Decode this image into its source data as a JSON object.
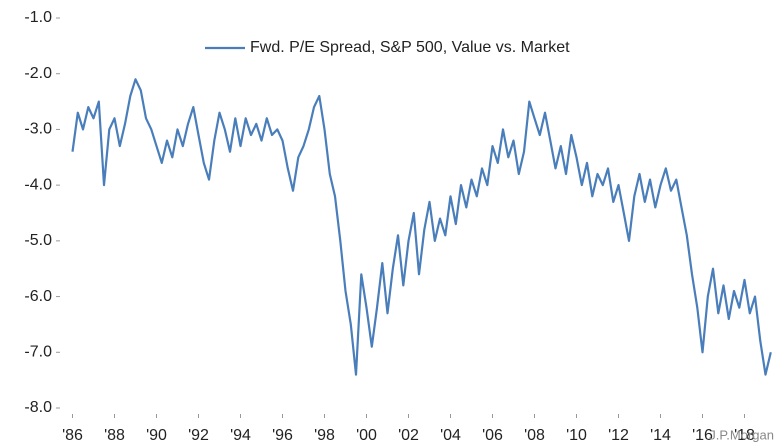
{
  "chart_data": {
    "type": "line",
    "legend": "top",
    "source": "J.P.Morgan",
    "xlim": [
      1985.5,
      2019.5
    ],
    "xticks": [
      {
        "value": 1986,
        "label": "'86"
      },
      {
        "value": 1988,
        "label": "'88"
      },
      {
        "value": 1990,
        "label": "'90"
      },
      {
        "value": 1992,
        "label": "'92"
      },
      {
        "value": 1994,
        "label": "'94"
      },
      {
        "value": 1996,
        "label": "'96"
      },
      {
        "value": 1998,
        "label": "'98"
      },
      {
        "value": 2000,
        "label": "'00"
      },
      {
        "value": 2002,
        "label": "'02"
      },
      {
        "value": 2004,
        "label": "'04"
      },
      {
        "value": 2006,
        "label": "'06"
      },
      {
        "value": 2008,
        "label": "'08"
      },
      {
        "value": 2010,
        "label": "'10"
      },
      {
        "value": 2012,
        "label": "'12"
      },
      {
        "value": 2014,
        "label": "'14"
      },
      {
        "value": 2016,
        "label": "'16"
      },
      {
        "value": 2018,
        "label": "'18"
      }
    ],
    "ylim": [
      -8,
      -1
    ],
    "yticks": [
      {
        "value": -1,
        "label": "-1.0"
      },
      {
        "value": -2,
        "label": "-2.0"
      },
      {
        "value": -3,
        "label": "-3.0"
      },
      {
        "value": -4,
        "label": "-4.0"
      },
      {
        "value": -5,
        "label": "-5.0"
      },
      {
        "value": -6,
        "label": "-6.0"
      },
      {
        "value": -7,
        "label": "-7.0"
      },
      {
        "value": -8,
        "label": "-8.0"
      }
    ],
    "x": [
      1986.0,
      1986.25,
      1986.5,
      1986.75,
      1987.0,
      1987.25,
      1987.5,
      1987.75,
      1988.0,
      1988.25,
      1988.5,
      1988.75,
      1989.0,
      1989.25,
      1989.5,
      1989.75,
      1990.0,
      1990.25,
      1990.5,
      1990.75,
      1991.0,
      1991.25,
      1991.5,
      1991.75,
      1992.0,
      1992.25,
      1992.5,
      1992.75,
      1993.0,
      1993.25,
      1993.5,
      1993.75,
      1994.0,
      1994.25,
      1994.5,
      1994.75,
      1995.0,
      1995.25,
      1995.5,
      1995.75,
      1996.0,
      1996.25,
      1996.5,
      1996.75,
      1997.0,
      1997.25,
      1997.5,
      1997.75,
      1998.0,
      1998.25,
      1998.5,
      1998.75,
      1999.0,
      1999.25,
      1999.5,
      1999.75,
      2000.0,
      2000.25,
      2000.5,
      2000.75,
      2001.0,
      2001.25,
      2001.5,
      2001.75,
      2002.0,
      2002.25,
      2002.5,
      2002.75,
      2003.0,
      2003.25,
      2003.5,
      2003.75,
      2004.0,
      2004.25,
      2004.5,
      2004.75,
      2005.0,
      2005.25,
      2005.5,
      2005.75,
      2006.0,
      2006.25,
      2006.5,
      2006.75,
      2007.0,
      2007.25,
      2007.5,
      2007.75,
      2008.0,
      2008.25,
      2008.5,
      2008.75,
      2009.0,
      2009.25,
      2009.5,
      2009.75,
      2010.0,
      2010.25,
      2010.5,
      2010.75,
      2011.0,
      2011.25,
      2011.5,
      2011.75,
      2012.0,
      2012.25,
      2012.5,
      2012.75,
      2013.0,
      2013.25,
      2013.5,
      2013.75,
      2014.0,
      2014.25,
      2014.5,
      2014.75,
      2015.0,
      2015.25,
      2015.5,
      2015.75,
      2016.0,
      2016.25,
      2016.5,
      2016.75,
      2017.0,
      2017.25,
      2017.5,
      2017.75,
      2018.0,
      2018.25,
      2018.5,
      2018.75,
      2019.0,
      2019.25
    ],
    "series": [
      {
        "name": "Fwd. P/E Spread, S&P 500, Value vs. Market",
        "color": "#4a7ebb",
        "values": [
          -3.4,
          -2.7,
          -3.0,
          -2.6,
          -2.8,
          -2.5,
          -4.0,
          -3.0,
          -2.8,
          -3.3,
          -2.9,
          -2.4,
          -2.1,
          -2.3,
          -2.8,
          -3.0,
          -3.3,
          -3.6,
          -3.2,
          -3.5,
          -3.0,
          -3.3,
          -2.9,
          -2.6,
          -3.1,
          -3.6,
          -3.9,
          -3.2,
          -2.7,
          -3.0,
          -3.4,
          -2.8,
          -3.3,
          -2.8,
          -3.1,
          -2.9,
          -3.2,
          -2.8,
          -3.1,
          -3.0,
          -3.2,
          -3.7,
          -4.1,
          -3.5,
          -3.3,
          -3.0,
          -2.6,
          -2.4,
          -3.0,
          -3.8,
          -4.2,
          -5.0,
          -5.9,
          -6.5,
          -7.4,
          -5.6,
          -6.2,
          -6.9,
          -6.2,
          -5.4,
          -6.3,
          -5.5,
          -4.9,
          -5.8,
          -5.0,
          -4.5,
          -5.6,
          -4.8,
          -4.3,
          -5.0,
          -4.6,
          -4.9,
          -4.2,
          -4.7,
          -4.0,
          -4.4,
          -3.9,
          -4.2,
          -3.7,
          -4.0,
          -3.3,
          -3.6,
          -3.0,
          -3.5,
          -3.2,
          -3.8,
          -3.4,
          -2.5,
          -2.8,
          -3.1,
          -2.7,
          -3.2,
          -3.7,
          -3.3,
          -3.8,
          -3.1,
          -3.5,
          -4.0,
          -3.6,
          -4.2,
          -3.8,
          -4.0,
          -3.7,
          -4.3,
          -4.0,
          -4.5,
          -5.0,
          -4.2,
          -3.8,
          -4.3,
          -3.9,
          -4.4,
          -4.0,
          -3.7,
          -4.1,
          -3.9,
          -4.4,
          -4.9,
          -5.6,
          -6.2,
          -7.0,
          -6.0,
          -5.5,
          -6.3,
          -5.8,
          -6.4,
          -5.9,
          -6.2,
          -5.7,
          -6.3,
          -6.0,
          -6.8,
          -7.4,
          -7.0
        ]
      }
    ]
  }
}
